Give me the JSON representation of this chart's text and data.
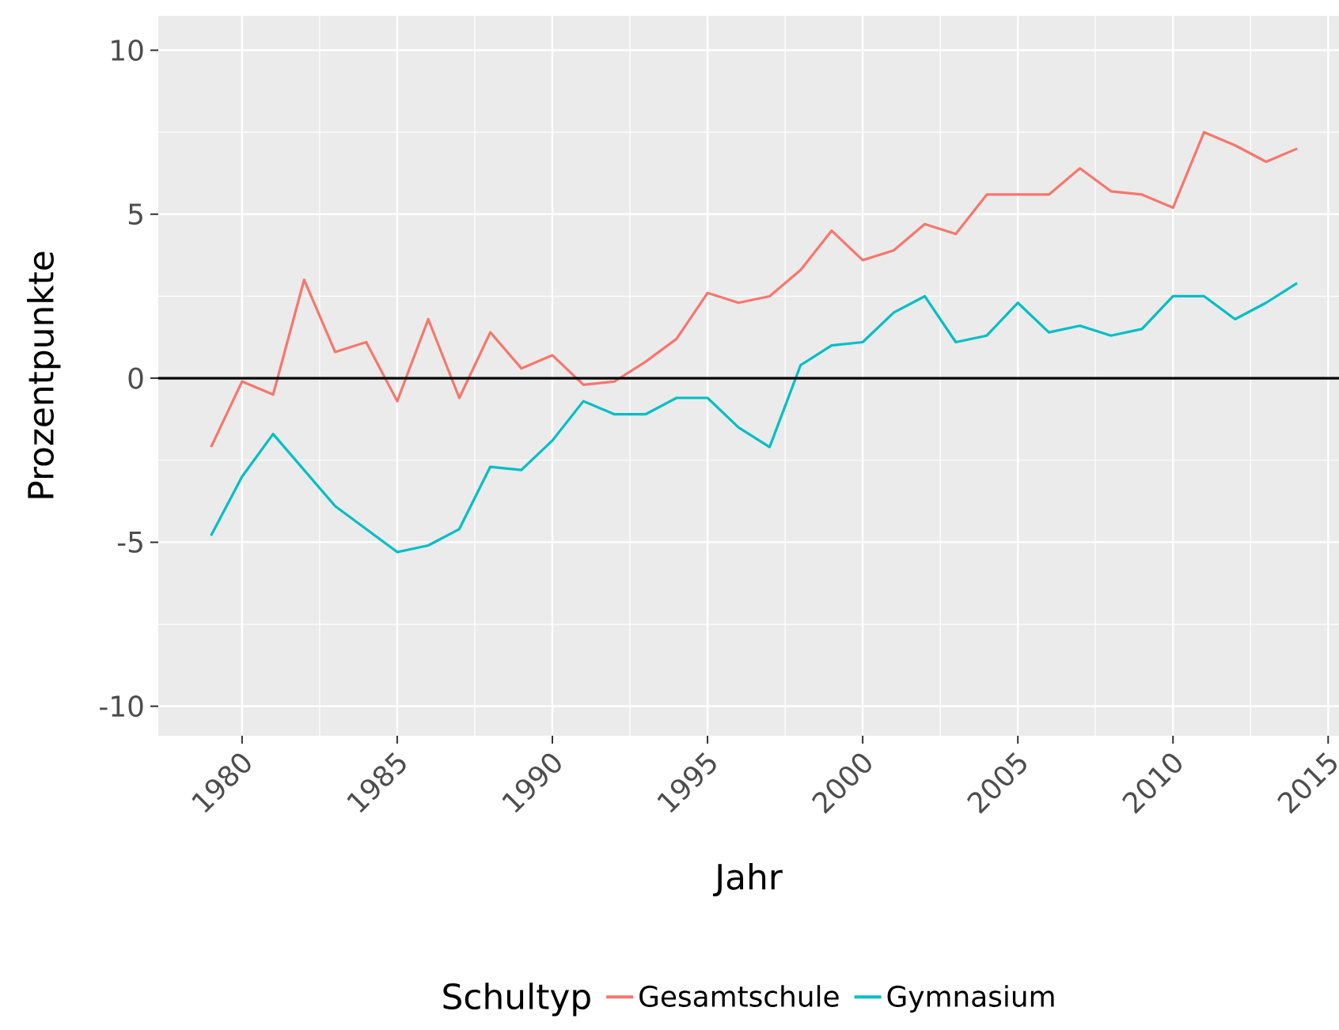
{
  "chart_data": {
    "type": "line",
    "xlabel": "Jahr",
    "ylabel": "Prozentpunkte",
    "legend_title": "Schultyp",
    "x": [
      1979,
      1980,
      1981,
      1982,
      1983,
      1984,
      1985,
      1986,
      1987,
      1988,
      1989,
      1990,
      1991,
      1992,
      1993,
      1994,
      1995,
      1996,
      1997,
      1998,
      1999,
      2000,
      2001,
      2002,
      2003,
      2004,
      2005,
      2006,
      2007,
      2008,
      2009,
      2010,
      2011,
      2012,
      2013,
      2014
    ],
    "series": [
      {
        "name": "Gesamtschule",
        "color": "#f8766d",
        "values": [
          -2.1,
          -0.1,
          -0.5,
          3.0,
          0.8,
          1.1,
          -0.7,
          1.8,
          -0.6,
          1.4,
          0.3,
          0.7,
          -0.2,
          -0.1,
          0.5,
          1.2,
          2.6,
          2.3,
          2.5,
          3.3,
          4.5,
          3.6,
          3.9,
          4.7,
          4.4,
          5.6,
          5.6,
          5.6,
          6.4,
          5.7,
          5.6,
          5.2,
          7.5,
          7.1,
          6.6,
          7.0
        ]
      },
      {
        "name": "Gymnasium",
        "color": "#00bfc4",
        "values": [
          -4.8,
          -3.0,
          -1.7,
          -2.8,
          -3.9,
          -4.6,
          -5.3,
          -5.1,
          -4.6,
          -2.7,
          -2.8,
          -1.9,
          -0.7,
          -1.1,
          -1.1,
          -0.6,
          -0.6,
          -1.5,
          -2.1,
          0.4,
          1.0,
          1.1,
          2.0,
          2.5,
          1.1,
          1.3,
          2.3,
          1.4,
          1.6,
          1.3,
          1.5,
          2.5,
          2.5,
          1.8,
          2.3,
          2.9
        ]
      }
    ],
    "xlim": [
      1977.3,
      2015.35
    ],
    "ylim": [
      -10.9,
      11.05
    ],
    "xticks": [
      1980,
      1985,
      1990,
      1995,
      2000,
      2005,
      2010,
      2015
    ],
    "yticks": [
      -10,
      -5,
      0,
      5,
      10
    ],
    "ref_lines": [
      {
        "axis": "y",
        "value": 0,
        "color": "#000000",
        "line_style": "solid"
      }
    ],
    "grid": true,
    "legend": "bottom",
    "line_style": "solid",
    "marker": "none"
  }
}
